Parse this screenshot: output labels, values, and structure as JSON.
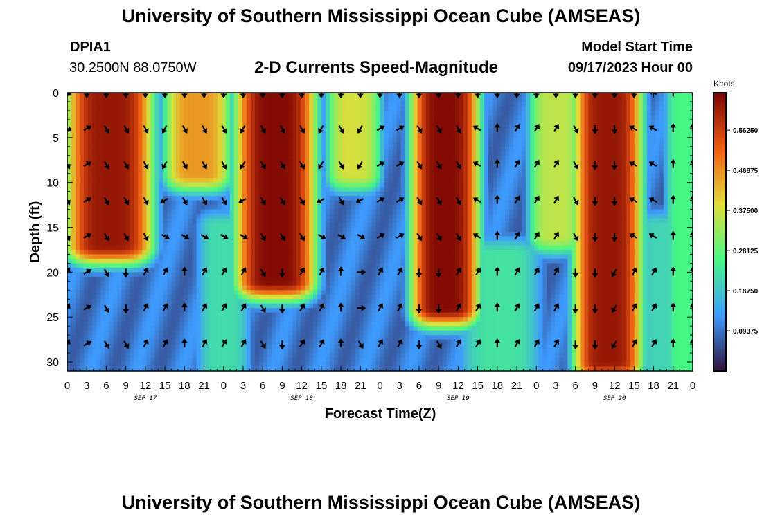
{
  "header": {
    "title": "University of Southern Mississippi Ocean Cube (AMSEAS)",
    "station_id": "DPIA1",
    "coordinates": "30.2500N  88.0750W",
    "plot_title": "2-D Currents Speed-Magnitude",
    "model_start_label": "Model Start Time",
    "model_start_value": "09/17/2023 Hour 00"
  },
  "footer": {
    "title": "University of Southern Mississippi Ocean Cube (AMSEAS)"
  },
  "colors": {
    "scale": [
      "#30123b",
      "#3e9bfe",
      "#46f884",
      "#e1dd37",
      "#f05b12",
      "#7a0403"
    ]
  },
  "chart_data": {
    "type": "heatmap",
    "title": "2-D Currents Speed-Magnitude",
    "xlabel": "Forecast Time(Z)",
    "ylabel": "Depth (ft)",
    "xlim": [
      0,
      96
    ],
    "ylim": [
      31,
      0
    ],
    "x_ticks": [
      "0",
      "3",
      "6",
      "9",
      "12",
      "15",
      "18",
      "21",
      "0",
      "3",
      "6",
      "9",
      "12",
      "15",
      "18",
      "21",
      "0",
      "3",
      "6",
      "9",
      "12",
      "15",
      "18",
      "21",
      "0",
      "3",
      "6",
      "9",
      "12",
      "15",
      "18",
      "21",
      "0"
    ],
    "y_ticks": [
      "0",
      "5",
      "10",
      "15",
      "20",
      "25",
      "30"
    ],
    "y_tick_values": [
      0,
      5,
      10,
      15,
      20,
      25,
      30
    ],
    "date_labels": [
      {
        "label": "SEP 17",
        "hour": 12
      },
      {
        "label": "SEP 18",
        "hour": 36
      },
      {
        "label": "SEP 19",
        "hour": 60
      },
      {
        "label": "SEP 20",
        "hour": 84
      }
    ],
    "colorbar": {
      "title": "Knots",
      "vmin": 0.0,
      "vmax": 0.65,
      "ticks": [
        "0.56250",
        "0.46875",
        "0.37500",
        "0.28125",
        "0.18750",
        "0.09375"
      ],
      "tick_values": [
        0.5625,
        0.46875,
        0.375,
        0.28125,
        0.1875,
        0.09375
      ]
    },
    "speed_blobs": [
      {
        "t0": 1,
        "t1": 12,
        "d0": 0,
        "d1": 17,
        "peak": 0.62
      },
      {
        "t0": 16,
        "t1": 24,
        "d0": 0,
        "d1": 9,
        "peak": 0.46
      },
      {
        "t0": 27,
        "t1": 37,
        "d0": 0,
        "d1": 21,
        "peak": 0.64
      },
      {
        "t0": 41,
        "t1": 47,
        "d0": 0,
        "d1": 9,
        "peak": 0.38
      },
      {
        "t0": 54,
        "t1": 62,
        "d0": 0,
        "d1": 24,
        "peak": 0.64
      },
      {
        "t0": 72,
        "t1": 78,
        "d0": 0,
        "d1": 16,
        "peak": 0.36
      },
      {
        "t0": 79,
        "t1": 87,
        "d0": 0,
        "d1": 30,
        "peak": 0.62
      },
      {
        "t0": 93,
        "t1": 96,
        "d0": 0,
        "d1": 31,
        "peak": 0.26
      },
      {
        "t0": 21,
        "t1": 27,
        "d0": 15,
        "d1": 31,
        "peak": 0.22
      },
      {
        "t0": 61,
        "t1": 72,
        "d0": 18,
        "d1": 31,
        "peak": 0.23
      },
      {
        "t0": 88,
        "t1": 96,
        "d0": 15,
        "d1": 31,
        "peak": 0.21
      }
    ],
    "vector_times": [
      0,
      3,
      6,
      9,
      12,
      15,
      18,
      21,
      24,
      27,
      30,
      33,
      36,
      39,
      42,
      45,
      48,
      51,
      54,
      57,
      60,
      63,
      66,
      69,
      72,
      75,
      78,
      81,
      84,
      87,
      90,
      93,
      96
    ],
    "vector_depths": [
      0,
      4,
      8,
      12,
      16,
      20,
      24,
      28
    ],
    "vector_directions_deg": [
      [
        120,
        180,
        180,
        180,
        180,
        180,
        180,
        180,
        180,
        180,
        180,
        180,
        180,
        180,
        180,
        180,
        180,
        180,
        180,
        180,
        180,
        180,
        180,
        180,
        180,
        180,
        180,
        180,
        180,
        180,
        300,
        0,
        0
      ],
      [
        120,
        60,
        150,
        150,
        150,
        210,
        150,
        150,
        150,
        210,
        150,
        150,
        150,
        210,
        150,
        210,
        60,
        60,
        150,
        150,
        150,
        300,
        0,
        30,
        30,
        30,
        150,
        180,
        180,
        300,
        300,
        0,
        0
      ],
      [
        150,
        60,
        150,
        150,
        150,
        210,
        150,
        150,
        150,
        210,
        150,
        150,
        150,
        210,
        150,
        210,
        60,
        60,
        150,
        150,
        150,
        300,
        0,
        30,
        30,
        30,
        150,
        180,
        180,
        300,
        300,
        0,
        0
      ],
      [
        150,
        60,
        150,
        150,
        150,
        240,
        150,
        150,
        150,
        240,
        150,
        150,
        150,
        240,
        150,
        240,
        60,
        60,
        150,
        150,
        150,
        300,
        0,
        30,
        30,
        30,
        150,
        180,
        180,
        300,
        300,
        0,
        0
      ],
      [
        150,
        60,
        150,
        150,
        150,
        120,
        120,
        120,
        120,
        120,
        150,
        150,
        150,
        120,
        120,
        120,
        60,
        60,
        150,
        150,
        150,
        300,
        0,
        30,
        30,
        30,
        150,
        180,
        180,
        300,
        300,
        0,
        0
      ],
      [
        30,
        60,
        150,
        180,
        30,
        30,
        0,
        30,
        30,
        30,
        150,
        180,
        30,
        30,
        0,
        90,
        30,
        30,
        180,
        180,
        30,
        30,
        0,
        30,
        30,
        30,
        180,
        180,
        210,
        30,
        30,
        0,
        0
      ],
      [
        30,
        60,
        150,
        180,
        30,
        30,
        0,
        30,
        30,
        30,
        150,
        180,
        30,
        30,
        0,
        90,
        30,
        30,
        180,
        180,
        30,
        30,
        0,
        30,
        30,
        30,
        180,
        180,
        210,
        30,
        30,
        0,
        0
      ],
      [
        30,
        60,
        150,
        150,
        30,
        30,
        0,
        30,
        30,
        30,
        150,
        180,
        30,
        30,
        0,
        150,
        30,
        30,
        180,
        150,
        30,
        30,
        0,
        30,
        30,
        30,
        180,
        180,
        210,
        30,
        30,
        0,
        0
      ]
    ]
  }
}
